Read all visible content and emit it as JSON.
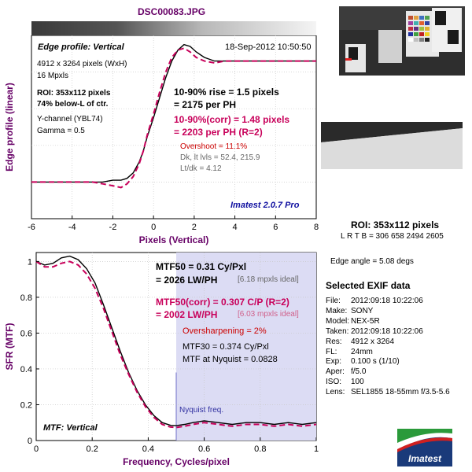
{
  "file_title": "DSC00083.JPG",
  "top_chart": {
    "panel_label": "Edge profile: Vertical",
    "timestamp": "18-Sep-2012 10:50:50",
    "info_lines": [
      "4912 x 3264 pixels (WxH)",
      "16 Mpxls"
    ],
    "roi_lines": [
      "ROI: 353x112 pixels",
      "74% below-L of ctr."
    ],
    "channel_lines": [
      "Y-channel  (YBL74)",
      "Gamma = 0.5"
    ],
    "rise_line1": "10-90% rise = 1.5 pixels",
    "rise_line2": "= 2175 per PH",
    "corr_line1": "10-90%(corr) = 1.48 pixels",
    "corr_line2": "= 2203 per PH  (R=2)",
    "overshoot": "Overshoot = 11.1%",
    "levels": "Dk, lt lvls = 52.4, 215.9",
    "ratio": "Lt/dk = 4.12",
    "version": "Imatest 2.0.7 Pro"
  },
  "bottom_chart": {
    "panel_label": "MTF: Vertical",
    "mtf50_line1": "MTF50 = 0.31 Cy/Pxl",
    "mtf50_line2": "= 2026 LW/PH",
    "mtf50_ideal": "[6.18 mpxls ideal]",
    "corr_line1": "MTF50(corr) = 0.307 C/P  (R=2)",
    "corr_line2": "= 2002 LW/PH",
    "corr_ideal": "[6.03 mpxls ideal]",
    "oversharpening": "Oversharpening = 2%",
    "mtf30": "MTF30 = 0.374 Cy/Pxl",
    "nyquist_value": "MTF at Nyquist = 0.0828",
    "nyquist_label": "Nyquist freq."
  },
  "side": {
    "roi_title": "ROI: 353x112 pixels",
    "roi_coords": "L R  T B = 306 658  2494 2605",
    "edge_angle": "Edge angle = 5.08 degs",
    "exif_title": "Selected EXIF data",
    "exif": [
      {
        "k": "File:",
        "v": "2012:09:18 10:22:06"
      },
      {
        "k": "Make:",
        "v": "SONY"
      },
      {
        "k": "Model:",
        "v": "NEX-5R"
      },
      {
        "k": "Taken:",
        "v": "2012:09:18 10:22:06"
      },
      {
        "k": "Res:",
        "v": "4912 x 3264"
      },
      {
        "k": "FL:",
        "v": "24mm"
      },
      {
        "k": "Exp:",
        "v": "0.100 s  (1/10)"
      },
      {
        "k": "Aper:",
        "v": "f/5.0"
      },
      {
        "k": "ISO:",
        "v": "100"
      },
      {
        "k": "Lens:",
        "v": "SEL1855 18-55mm f/3.5-5.6"
      }
    ],
    "logo_text": "Imatest"
  },
  "colors": {
    "measured": "#000000",
    "corrected": "#c8005a",
    "nyquist_fill": "#dcdcf4",
    "nyquist_line": "#7070c8",
    "axis_label": "#660066"
  },
  "chart_data": [
    {
      "type": "line",
      "title": "Edge profile: Vertical",
      "xlabel": "Pixels (Vertical)",
      "ylabel": "Edge profile (linear)",
      "xlim": [
        -6,
        8
      ],
      "ylim": [
        0,
        1
      ],
      "xticks": [
        -6,
        -4,
        -2,
        0,
        2,
        4,
        6,
        8
      ],
      "grid": true,
      "series": [
        {
          "style": "solid",
          "x": [
            -6,
            -5,
            -4,
            -3,
            -2.5,
            -2,
            -1.6,
            -1.3,
            -1,
            -0.7,
            -0.5,
            -0.3,
            0,
            0.3,
            0.6,
            0.9,
            1.2,
            1.5,
            1.8,
            2.1,
            2.5,
            3,
            3.5,
            4,
            5,
            6,
            7,
            8
          ],
          "y": [
            0.2,
            0.2,
            0.2,
            0.2,
            0.2,
            0.21,
            0.21,
            0.22,
            0.25,
            0.31,
            0.37,
            0.45,
            0.55,
            0.66,
            0.77,
            0.86,
            0.92,
            0.95,
            0.94,
            0.91,
            0.88,
            0.86,
            0.86,
            0.86,
            0.86,
            0.86,
            0.86,
            0.86
          ]
        },
        {
          "style": "dashed",
          "x": [
            -6,
            -5,
            -4,
            -3,
            -2.5,
            -2,
            -1.6,
            -1.3,
            -1,
            -0.7,
            -0.5,
            -0.3,
            0,
            0.3,
            0.6,
            0.9,
            1.2,
            1.5,
            1.8,
            2.1,
            2.5,
            3,
            3.5,
            4,
            5,
            6,
            7,
            8
          ],
          "y": [
            0.2,
            0.2,
            0.2,
            0.2,
            0.19,
            0.18,
            0.17,
            0.19,
            0.23,
            0.3,
            0.37,
            0.46,
            0.57,
            0.69,
            0.8,
            0.88,
            0.92,
            0.93,
            0.91,
            0.88,
            0.86,
            0.85,
            0.86,
            0.86,
            0.86,
            0.86,
            0.86,
            0.86
          ]
        }
      ]
    },
    {
      "type": "line",
      "title": "MTF: Vertical",
      "xlabel": "Frequency, Cycles/pixel",
      "ylabel": "SFR (MTF)",
      "xlim": [
        0,
        1
      ],
      "ylim": [
        0,
        1.05
      ],
      "xticks": [
        0,
        0.2,
        0.4,
        0.6,
        0.8,
        1
      ],
      "yticks": [
        0,
        0.2,
        0.4,
        0.6,
        0.8,
        1
      ],
      "grid": true,
      "series": [
        {
          "style": "solid",
          "x": [
            0,
            0.03,
            0.06,
            0.09,
            0.12,
            0.15,
            0.18,
            0.21,
            0.24,
            0.27,
            0.3,
            0.33,
            0.36,
            0.39,
            0.42,
            0.45,
            0.48,
            0.5,
            0.53,
            0.56,
            0.6,
            0.65,
            0.7,
            0.75,
            0.8,
            0.85,
            0.9,
            0.95,
            1.0
          ],
          "y": [
            1.0,
            0.98,
            0.99,
            1.02,
            1.03,
            1.01,
            0.96,
            0.88,
            0.76,
            0.63,
            0.5,
            0.38,
            0.28,
            0.2,
            0.14,
            0.1,
            0.085,
            0.083,
            0.09,
            0.1,
            0.11,
            0.1,
            0.09,
            0.1,
            0.1,
            0.09,
            0.1,
            0.09,
            0.1
          ]
        },
        {
          "style": "dashed",
          "x": [
            0,
            0.03,
            0.06,
            0.09,
            0.12,
            0.15,
            0.18,
            0.21,
            0.24,
            0.27,
            0.3,
            0.33,
            0.36,
            0.39,
            0.42,
            0.45,
            0.48,
            0.5,
            0.53,
            0.56,
            0.6,
            0.65,
            0.7,
            0.75,
            0.8,
            0.85,
            0.9,
            0.95,
            1.0
          ],
          "y": [
            1.0,
            0.97,
            0.97,
            0.99,
            1.0,
            0.98,
            0.93,
            0.85,
            0.74,
            0.61,
            0.48,
            0.37,
            0.27,
            0.19,
            0.13,
            0.09,
            0.075,
            0.073,
            0.08,
            0.09,
            0.1,
            0.09,
            0.08,
            0.09,
            0.09,
            0.08,
            0.09,
            0.08,
            0.09
          ]
        }
      ],
      "nyquist": 0.5
    }
  ]
}
